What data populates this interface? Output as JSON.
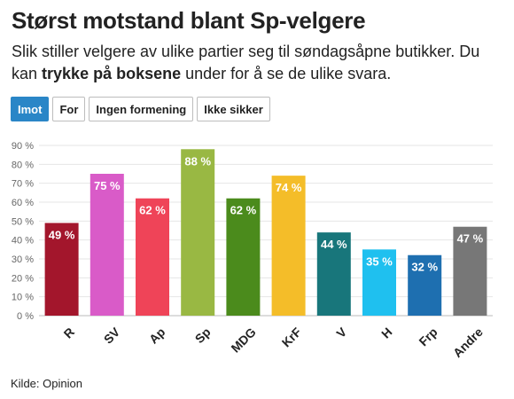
{
  "title": "Størst motstand blant Sp-velgere",
  "subtitle": {
    "part1": "Slik stiller velgere av ulike partier seg til søndagsåpne butikker. Du kan ",
    "bold": "trykke på boksene",
    "part2": " under for å se de ulike svara."
  },
  "buttons": [
    {
      "label": "Imot",
      "active": true
    },
    {
      "label": "For",
      "active": false
    },
    {
      "label": "Ingen formening",
      "active": false
    },
    {
      "label": "Ikke sikker",
      "active": false
    }
  ],
  "source": "Kilde: Opinion",
  "chart_data": {
    "type": "bar",
    "categories": [
      "R",
      "SV",
      "Ap",
      "Sp",
      "MDG",
      "KrF",
      "V",
      "H",
      "Frp",
      "Andre"
    ],
    "values": [
      49,
      75,
      62,
      88,
      62,
      74,
      44,
      35,
      32,
      47
    ],
    "data_labels": [
      "49 %",
      "75 %",
      "62 %",
      "88 %",
      "62 %",
      "74 %",
      "44 %",
      "35 %",
      "32 %",
      "47 %"
    ],
    "colors": [
      "#a3162c",
      "#d95bc8",
      "#ef4458",
      "#99b843",
      "#4b8b1c",
      "#f4bd29",
      "#18767b",
      "#1fc0ef",
      "#1e6fb0",
      "#777777"
    ],
    "yticks": [
      "0 %",
      "10 %",
      "20 %",
      "30 %",
      "40 %",
      "50 %",
      "60 %",
      "70 %",
      "80 %",
      "90 %"
    ],
    "ylim": [
      0,
      90
    ],
    "grid": true,
    "xlabel": "",
    "ylabel": ""
  }
}
